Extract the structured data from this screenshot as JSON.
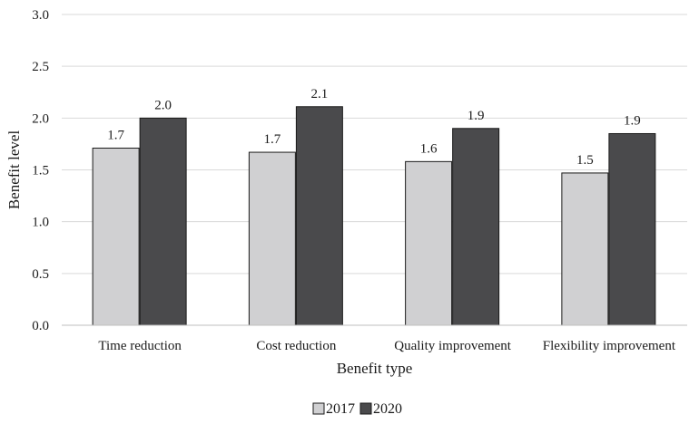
{
  "chart_data": {
    "type": "bar",
    "title": "",
    "xlabel": "Benefit type",
    "ylabel": "Benefit level",
    "categories": [
      "Time reduction",
      "Cost reduction",
      "Quality improvement",
      "Flexibility improvement"
    ],
    "series": [
      {
        "name": "2017",
        "values": [
          1.71,
          1.67,
          1.58,
          1.47
        ],
        "labels": [
          "1.7",
          "1.7",
          "1.6",
          "1.5"
        ],
        "color": "#d0d0d2"
      },
      {
        "name": "2020",
        "values": [
          2.0,
          2.11,
          1.9,
          1.85
        ],
        "labels": [
          "2.0",
          "2.1",
          "1.9",
          "1.9"
        ],
        "color": "#4a4a4c"
      }
    ],
    "ylim": [
      0,
      3.0
    ],
    "yticks": [
      "0.0",
      "0.5",
      "1.0",
      "1.5",
      "2.0",
      "2.5",
      "3.0"
    ],
    "grid": true,
    "legend_position": "bottom-center"
  }
}
